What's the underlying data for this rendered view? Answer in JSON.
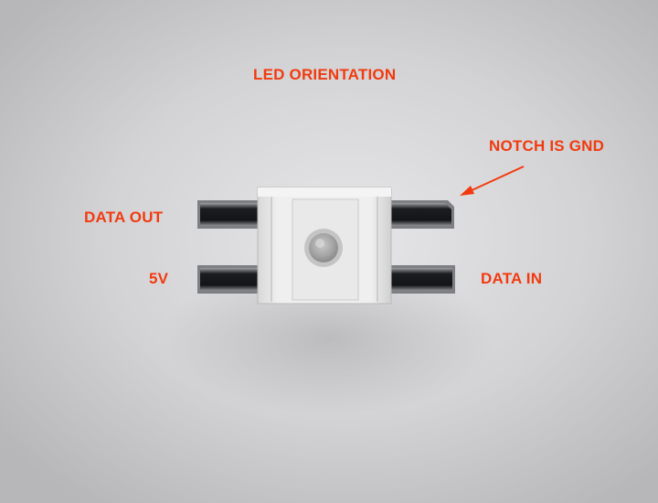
{
  "title": "LED ORIENTATION",
  "labels": {
    "notch": "NOTCH IS GND",
    "data_out": "DATA OUT",
    "power": "5V",
    "data_in": "DATA IN"
  },
  "colors": {
    "annotation": "#f23a0f"
  }
}
